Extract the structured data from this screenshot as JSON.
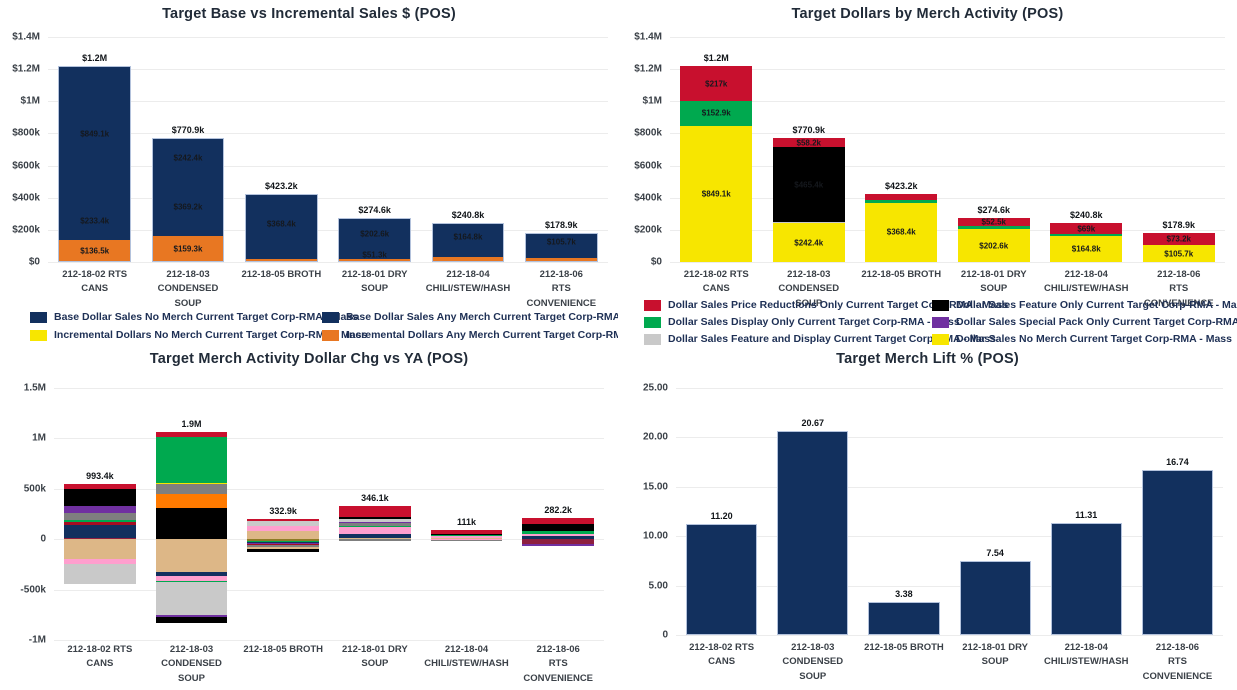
{
  "colors": {
    "navy": "#12305e",
    "orange": "#e87722",
    "yellow": "#f7e600",
    "red": "#c8102e",
    "green": "#00a94f",
    "black": "#000000",
    "purple": "#7030a0",
    "gray": "#7f7f7f",
    "lightgray": "#c9c9c9",
    "tan": "#ddb787",
    "pink": "#ff9fce",
    "maroon": "#8e1f3f",
    "darkred": "#a50e22",
    "vividorange": "#ff7a00",
    "olive": "#8c7b25"
  },
  "chart_data": [
    {
      "type": "bar",
      "stacked": true,
      "title": "Target Base vs Incremental Sales $ (POS)",
      "y": {
        "min": 0,
        "max": 1400,
        "ticks": [
          {
            "label": "$1.4M",
            "v": 1400
          },
          {
            "label": "$1.2M",
            "v": 1200
          },
          {
            "label": "$1M",
            "v": 1000
          },
          {
            "label": "$800k",
            "v": 800
          },
          {
            "label": "$600k",
            "v": 600
          },
          {
            "label": "$400k",
            "v": 400
          },
          {
            "label": "$200k",
            "v": 200
          },
          {
            "label": "$0",
            "v": 0
          }
        ]
      },
      "categories": [
        [
          "212-18-02 RTS CANS"
        ],
        [
          "212-18-03",
          "CONDENSED",
          "SOUP"
        ],
        [
          "212-18-05 BROTH"
        ],
        [
          "212-18-01 DRY SOUP"
        ],
        [
          "212-18-04",
          "CHILI/STEW/HASH"
        ],
        [
          "212-18-06",
          "RTS",
          "CONVENIENCE"
        ]
      ],
      "bars": [
        {
          "total": "$1.2M",
          "pos": [
            {
              "c": "orange",
              "v": 136.5,
              "label": "$136.5k"
            },
            {
              "c": "navy",
              "v": 233.4,
              "label": "$233.4k"
            },
            {
              "c": "navy",
              "v": 849.1,
              "label": "$849.1k"
            }
          ]
        },
        {
          "total": "$770.9k",
          "pos": [
            {
              "c": "orange",
              "v": 159.3,
              "label": "$159.3k"
            },
            {
              "c": "navy",
              "v": 369.2,
              "label": "$369.2k"
            },
            {
              "c": "navy",
              "v": 242.4,
              "label": "$242.4k"
            }
          ]
        },
        {
          "total": "$423.2k",
          "pos": [
            {
              "c": "orange",
              "v": 17.0
            },
            {
              "c": "navy",
              "v": 37.8
            },
            {
              "c": "navy",
              "v": 368.4,
              "label": "$368.4k"
            }
          ]
        },
        {
          "total": "$274.6k",
          "pos": [
            {
              "c": "orange",
              "v": 20.7
            },
            {
              "c": "navy",
              "v": 51.3,
              "label": "$51.3k"
            },
            {
              "c": "navy",
              "v": 202.6,
              "label": "$202.6k"
            }
          ]
        },
        {
          "total": "$240.8k",
          "pos": [
            {
              "c": "orange",
              "v": 30.0
            },
            {
              "c": "navy",
              "v": 46.0
            },
            {
              "c": "navy",
              "v": 164.8,
              "label": "$164.8k"
            }
          ]
        },
        {
          "total": "$178.9k",
          "pos": [
            {
              "c": "orange",
              "v": 25.0
            },
            {
              "c": "navy",
              "v": 48.2
            },
            {
              "c": "navy",
              "v": 105.7,
              "label": "$105.7k"
            }
          ]
        }
      ],
      "legend": {
        "items": [
          {
            "c": "navy",
            "label": "Base Dollar Sales No Merch Current Target Corp-RMA - Mass"
          },
          {
            "c": "navy",
            "label": "Base Dollar Sales Any Merch Current Target Corp-RMA - Mass"
          },
          {
            "c": "yellow",
            "label": "Incremental Dollars No Merch Current Target Corp-RMA - Mass"
          },
          {
            "c": "orange",
            "label": "Incremental Dollars Any Merch Current Target Corp-RMA - Mass"
          }
        ]
      }
    },
    {
      "type": "bar",
      "stacked": true,
      "title": "Target Dollars by Merch Activity (POS)",
      "y": {
        "min": 0,
        "max": 1400,
        "ticks": [
          {
            "label": "$1.4M",
            "v": 1400
          },
          {
            "label": "$1.2M",
            "v": 1200
          },
          {
            "label": "$1M",
            "v": 1000
          },
          {
            "label": "$800k",
            "v": 800
          },
          {
            "label": "$600k",
            "v": 600
          },
          {
            "label": "$400k",
            "v": 400
          },
          {
            "label": "$200k",
            "v": 200
          },
          {
            "label": "$0",
            "v": 0
          }
        ]
      },
      "categories": [
        [
          "212-18-02 RTS CANS"
        ],
        [
          "212-18-03",
          "CONDENSED",
          "SOUP"
        ],
        [
          "212-18-05 BROTH"
        ],
        [
          "212-18-01 DRY SOUP"
        ],
        [
          "212-18-04",
          "CHILI/STEW/HASH"
        ],
        [
          "212-18-06",
          "RTS",
          "CONVENIENCE"
        ]
      ],
      "bars": [
        {
          "total": "$1.2M",
          "pos": [
            {
              "c": "yellow",
              "v": 849.1,
              "label": "$849.1k"
            },
            {
              "c": "green",
              "v": 152.9,
              "label": "$152.9k"
            },
            {
              "c": "red",
              "v": 217.0,
              "label": "$217k"
            }
          ]
        },
        {
          "total": "$770.9k",
          "pos": [
            {
              "c": "yellow",
              "v": 242.4,
              "label": "$242.4k"
            },
            {
              "c": "lightgray",
              "v": 4.9
            },
            {
              "c": "black",
              "v": 465.4,
              "label": "$465.4k"
            },
            {
              "c": "red",
              "v": 58.2,
              "label": "$58.2k"
            }
          ]
        },
        {
          "total": "$423.2k",
          "pos": [
            {
              "c": "yellow",
              "v": 368.4,
              "label": "$368.4k"
            },
            {
              "c": "green",
              "v": 20.0
            },
            {
              "c": "red",
              "v": 34.8
            }
          ]
        },
        {
          "total": "$274.6k",
          "pos": [
            {
              "c": "yellow",
              "v": 202.6,
              "label": "$202.6k"
            },
            {
              "c": "green",
              "v": 19.5
            },
            {
              "c": "red",
              "v": 52.5,
              "label": "$52.5k"
            }
          ]
        },
        {
          "total": "$240.8k",
          "pos": [
            {
              "c": "yellow",
              "v": 164.8,
              "label": "$164.8k"
            },
            {
              "c": "green",
              "v": 7.0
            },
            {
              "c": "red",
              "v": 69.0,
              "label": "$69k"
            }
          ]
        },
        {
          "total": "$178.9k",
          "pos": [
            {
              "c": "yellow",
              "v": 105.7,
              "label": "$105.7k"
            },
            {
              "c": "red",
              "v": 73.2,
              "label": "$73.2k"
            }
          ]
        }
      ],
      "legend": {
        "items": [
          {
            "c": "red",
            "label": "Dollar Sales Price Reductions Only Current Target Corp-RMA - Mass"
          },
          {
            "c": "black",
            "label": "Dollar Sales Feature Only Current Target Corp-RMA - Mass"
          },
          {
            "c": "green",
            "label": "Dollar Sales Display Only Current Target Corp-RMA - Mass"
          },
          {
            "c": "purple",
            "label": "Dollar Sales Special Pack Only Current Target Corp-RMA - Mass"
          },
          {
            "c": "lightgray",
            "label": "Dollar Sales Feature and Display Current Target Corp-RMA - Mass"
          },
          {
            "c": "yellow",
            "label": "Dollar Sales No Merch Current Target Corp-RMA - Mass"
          }
        ]
      }
    },
    {
      "type": "bar",
      "stacked": true,
      "title": "Target Merch Activity Dollar Chg vs YA (POS)",
      "y": {
        "min": -1000,
        "max": 1500,
        "ticks": [
          {
            "label": "1.5M",
            "v": 1500
          },
          {
            "label": "1M",
            "v": 1000
          },
          {
            "label": "500k",
            "v": 500
          },
          {
            "label": "0",
            "v": 0
          },
          {
            "label": "-500k",
            "v": -500
          },
          {
            "label": "-1M",
            "v": -1000
          }
        ]
      },
      "categories": [
        [
          "212-18-02 RTS CANS"
        ],
        [
          "212-18-03",
          "CONDENSED",
          "SOUP"
        ],
        [
          "212-18-05 BROTH"
        ],
        [
          "212-18-01 DRY SOUP"
        ],
        [
          "212-18-04",
          "CHILI/STEW/HASH"
        ],
        [
          "212-18-06",
          "RTS",
          "CONVENIENCE"
        ]
      ],
      "bars": [
        {
          "total": "993.4k",
          "pos": [
            {
              "c": "maroon",
              "v": 15
            },
            {
              "c": "navy",
              "v": 130
            },
            {
              "c": "darkred",
              "v": 25
            },
            {
              "c": "green",
              "v": 20
            },
            {
              "c": "gray",
              "v": 70
            },
            {
              "c": "purple",
              "v": 70
            },
            {
              "c": "black",
              "v": 165
            },
            {
              "c": "red",
              "v": 55
            }
          ],
          "neg": [
            {
              "c": "tan",
              "v": 195
            },
            {
              "c": "pink",
              "v": 48
            },
            {
              "c": "lightgray",
              "v": 200.4
            }
          ]
        },
        {
          "total": "1.9M",
          "pos": [
            {
              "c": "black",
              "v": 305
            },
            {
              "c": "vividorange",
              "v": 140
            },
            {
              "c": "gray",
              "v": 105
            },
            {
              "c": "yellow",
              "v": 12
            },
            {
              "c": "green",
              "v": 455
            },
            {
              "c": "red",
              "v": 48
            }
          ],
          "neg": [
            {
              "c": "tan",
              "v": 330
            },
            {
              "c": "navy",
              "v": 40
            },
            {
              "c": "pink",
              "v": 40
            },
            {
              "c": "green",
              "v": 12
            },
            {
              "c": "lightgray",
              "v": 330
            },
            {
              "c": "purple",
              "v": 22
            },
            {
              "c": "black",
              "v": 61
            }
          ]
        },
        {
          "total": "332.9k",
          "pos": [
            {
              "c": "tan",
              "v": 85
            },
            {
              "c": "pink",
              "v": 45
            },
            {
              "c": "lightgray",
              "v": 55
            },
            {
              "c": "red",
              "v": 20
            }
          ],
          "neg": [
            {
              "c": "olive",
              "v": 15
            },
            {
              "c": "green",
              "v": 10
            },
            {
              "c": "navy",
              "v": 13
            },
            {
              "c": "purple",
              "v": 10
            },
            {
              "c": "darkred",
              "v": 12
            },
            {
              "c": "gray",
              "v": 20
            },
            {
              "c": "tan",
              "v": 20
            },
            {
              "c": "black",
              "v": 27.9
            }
          ]
        },
        {
          "total": "346.1k",
          "pos": [
            {
              "c": "tan",
              "v": 15
            },
            {
              "c": "navy",
              "v": 40
            },
            {
              "c": "pink",
              "v": 62
            },
            {
              "c": "green",
              "v": 10
            },
            {
              "c": "gray",
              "v": 33
            },
            {
              "c": "purple",
              "v": 12
            },
            {
              "c": "lightgray",
              "v": 25
            },
            {
              "c": "black",
              "v": 20
            },
            {
              "c": "red",
              "v": 110
            }
          ],
          "neg": [
            {
              "c": "gray",
              "v": 19.1
            }
          ]
        },
        {
          "total": "111k",
          "pos": [
            {
              "c": "navy",
              "v": 8
            },
            {
              "c": "tan",
              "v": 5
            },
            {
              "c": "pink",
              "v": 15
            },
            {
              "c": "gray",
              "v": 12
            },
            {
              "c": "green",
              "v": 5
            },
            {
              "c": "black",
              "v": 10
            },
            {
              "c": "red",
              "v": 40
            }
          ],
          "neg": [
            {
              "c": "pink",
              "v": 8
            },
            {
              "c": "gray",
              "v": 8
            }
          ]
        },
        {
          "total": "282.2k",
          "pos": [
            {
              "c": "navy",
              "v": 32
            },
            {
              "c": "pink",
              "v": 18
            },
            {
              "c": "green",
              "v": 28
            },
            {
              "c": "black",
              "v": 75
            },
            {
              "c": "red",
              "v": 59
            }
          ],
          "neg": [
            {
              "c": "maroon",
              "v": 45
            },
            {
              "c": "purple",
              "v": 25.2
            }
          ]
        }
      ]
    },
    {
      "type": "bar",
      "stacked": false,
      "title": "Target Merch Lift % (POS)",
      "y": {
        "min": 0,
        "max": 25,
        "ticks": [
          {
            "label": "25.00",
            "v": 25
          },
          {
            "label": "20.00",
            "v": 20
          },
          {
            "label": "15.00",
            "v": 15
          },
          {
            "label": "10.00",
            "v": 10
          },
          {
            "label": "5.00",
            "v": 5
          },
          {
            "label": "0",
            "v": 0
          }
        ]
      },
      "categories": [
        [
          "212-18-02 RTS CANS"
        ],
        [
          "212-18-03",
          "CONDENSED",
          "SOUP"
        ],
        [
          "212-18-05 BROTH"
        ],
        [
          "212-18-01 DRY SOUP"
        ],
        [
          "212-18-04",
          "CHILI/STEW/HASH"
        ],
        [
          "212-18-06",
          "RTS",
          "CONVENIENCE"
        ]
      ],
      "bars": [
        {
          "total": "11.20",
          "pos": [
            {
              "c": "navy",
              "v": 11.2
            }
          ]
        },
        {
          "total": "20.67",
          "pos": [
            {
              "c": "navy",
              "v": 20.67
            }
          ]
        },
        {
          "total": "3.38",
          "pos": [
            {
              "c": "navy",
              "v": 3.38
            }
          ]
        },
        {
          "total": "7.54",
          "pos": [
            {
              "c": "navy",
              "v": 7.54
            }
          ]
        },
        {
          "total": "11.31",
          "pos": [
            {
              "c": "navy",
              "v": 11.31
            }
          ]
        },
        {
          "total": "16.74",
          "pos": [
            {
              "c": "navy",
              "v": 16.74
            }
          ]
        }
      ]
    }
  ]
}
